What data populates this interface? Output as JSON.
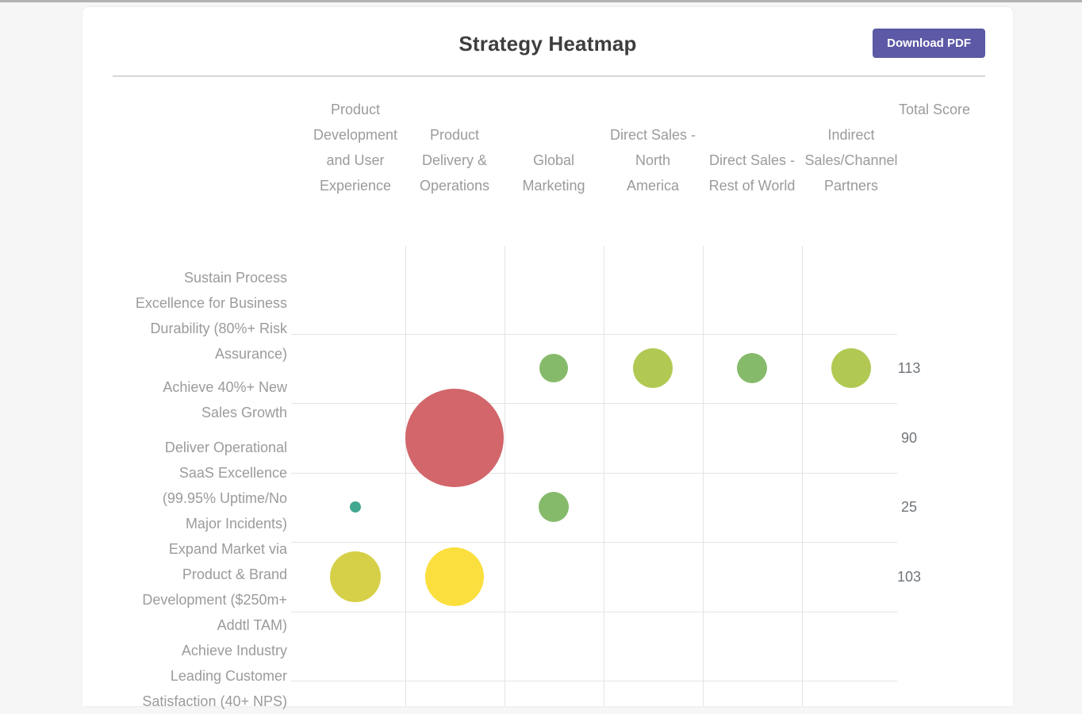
{
  "page": {
    "background_color": "#f5f6f5",
    "top_strip_color": "#b3b1b1"
  },
  "header": {
    "title": "Strategy Heatmap",
    "download_button_label": "Download PDF",
    "button_color": "#5c59a6"
  },
  "chart_data": {
    "type": "heatmap",
    "title": "Strategy Heatmap",
    "grid": true,
    "legend_position": "none",
    "columns": [
      "Product Development and User Experience",
      "Product Delivery & Operations",
      "Global Marketing",
      "Direct Sales - North America",
      "Direct Sales - Rest of World",
      "Indirect Sales/Channel Partners"
    ],
    "column_header_lines": [
      [
        "Product",
        "Development",
        "and User",
        "Experience"
      ],
      [
        "Product",
        "Delivery &",
        "Operations"
      ],
      [
        "Global",
        "Marketing"
      ],
      [
        "Direct Sales -",
        "North",
        "America"
      ],
      [
        "Direct Sales -",
        "Rest of World"
      ],
      [
        "Indirect",
        "Sales/Channel",
        "Partners"
      ]
    ],
    "total_score_label": "Total Score",
    "bubble_colors": {
      "green": "#85ba6a",
      "yellow_green": "#b1c953",
      "red": "#d2666b",
      "teal": "#42a78f",
      "olive": "#d5d047",
      "yellow": "#fbdf3e"
    },
    "rows": [
      {
        "label": "Sustain Process Excellence for Business Durability (80%+ Risk Assurance)",
        "label_lines": [
          "Sustain Process",
          "Excellence for Business",
          "Durability (80%+ Risk",
          "Assurance)"
        ],
        "total_score": "113",
        "cells": [
          null,
          null,
          {
            "radius": 18,
            "color": "#85ba6a"
          },
          {
            "radius": 25,
            "color": "#b1c953"
          },
          {
            "radius": 19,
            "color": "#85ba6a"
          },
          {
            "radius": 25,
            "color": "#b1c953"
          }
        ]
      },
      {
        "label": "Achieve 40%+ New Sales Growth",
        "label_lines": [
          "Achieve 40%+ New",
          "Sales Growth"
        ],
        "total_score": "90",
        "cells": [
          null,
          {
            "radius": 62,
            "color": "#d2666b"
          },
          null,
          null,
          null,
          null
        ]
      },
      {
        "label": "Deliver Operational SaaS Excellence (99.95% Uptime/No Major Incidents)",
        "label_lines": [
          "Deliver Operational",
          "SaaS Excellence",
          "(99.95% Uptime/No",
          "Major Incidents)"
        ],
        "total_score": "25",
        "cells": [
          {
            "radius": 7,
            "color": "#42a78f"
          },
          null,
          {
            "radius": 19,
            "color": "#85ba6a"
          },
          null,
          null,
          null
        ]
      },
      {
        "label": "Expand Market via Product & Brand Development ($250m+ Addtl TAM)",
        "label_lines": [
          "Expand Market via",
          "Product & Brand",
          "Development ($250m+",
          "Addtl TAM)"
        ],
        "total_score": "103",
        "cells": [
          {
            "radius": 32,
            "color": "#d5d047"
          },
          {
            "radius": 37,
            "color": "#fbdf3e"
          },
          null,
          null,
          null,
          null
        ]
      },
      {
        "label": "Achieve Industry Leading Customer Satisfaction (40+ NPS)",
        "label_lines": [
          "Achieve Industry",
          "Leading Customer",
          "Satisfaction (40+ NPS)"
        ],
        "total_score": null,
        "cells": [
          null,
          null,
          null,
          null,
          null,
          null
        ]
      }
    ]
  }
}
